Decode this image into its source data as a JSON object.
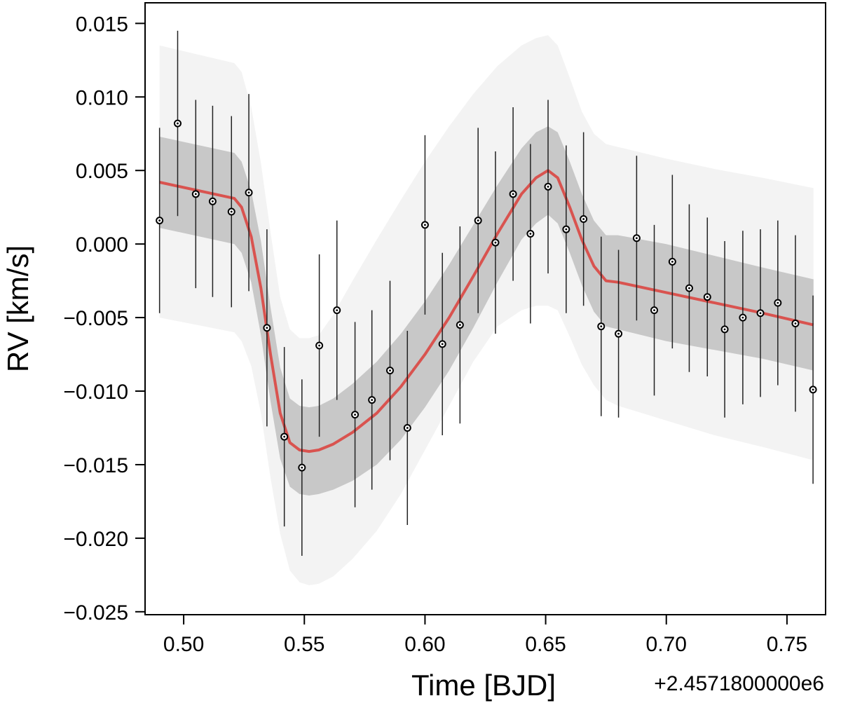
{
  "chart_data": {
    "type": "scatter",
    "xlabel": "Time [BJD]",
    "ylabel": "RV [km/s]",
    "x_offset_label": "+2.4571800000e6",
    "xlim": [
      0.484,
      0.766
    ],
    "ylim": [
      -0.0252,
      0.0164
    ],
    "x_ticks": [
      0.5,
      0.55,
      0.6,
      0.65,
      0.7,
      0.75
    ],
    "x_tick_labels": [
      "0.50",
      "0.55",
      "0.60",
      "0.65",
      "0.70",
      "0.75"
    ],
    "y_ticks": [
      0.015,
      0.01,
      0.005,
      0.0,
      -0.005,
      -0.01,
      -0.015,
      -0.02,
      -0.025
    ],
    "y_tick_labels": [
      "0.015",
      "0.010",
      "0.005",
      "0.000",
      "−0.005",
      "−0.010",
      "−0.015",
      "−0.020",
      "−0.025"
    ],
    "grid": false,
    "colors": {
      "model_line": "#d9534f",
      "inner_band": "#c8c8c8",
      "outer_band": "#f3f3f3",
      "points": "#000000"
    },
    "series": [
      {
        "type": "scatter_with_errorbars",
        "x": [
          0.49,
          0.4975,
          0.505,
          0.512,
          0.5198,
          0.527,
          0.5345,
          0.5417,
          0.549,
          0.5562,
          0.5635,
          0.571,
          0.578,
          0.5855,
          0.5927,
          0.6,
          0.6072,
          0.6145,
          0.622,
          0.6292,
          0.6365,
          0.6437,
          0.651,
          0.6585,
          0.6657,
          0.673,
          0.6802,
          0.6877,
          0.695,
          0.7025,
          0.7095,
          0.717,
          0.7242,
          0.7317,
          0.739,
          0.7462,
          0.7535,
          0.7608
        ],
        "y": [
          0.0016,
          0.0082,
          0.0034,
          0.0029,
          0.0022,
          0.0035,
          -0.0057,
          -0.0131,
          -0.0152,
          -0.0069,
          -0.0045,
          -0.0116,
          -0.0106,
          -0.0086,
          -0.0125,
          0.0013,
          -0.0068,
          -0.0055,
          0.0016,
          0.0001,
          0.0034,
          0.0007,
          0.0039,
          0.001,
          0.0017,
          -0.0056,
          -0.0061,
          0.0004,
          -0.0045,
          -0.0012,
          -0.003,
          -0.0036,
          -0.0058,
          -0.005,
          -0.0047,
          -0.004,
          -0.0054,
          -0.0099
        ],
        "yerr": [
          0.0063,
          0.0063,
          0.0064,
          0.0065,
          0.0065,
          0.0067,
          0.0067,
          0.0061,
          0.006,
          0.0062,
          0.0061,
          0.0063,
          0.0061,
          0.0061,
          0.0066,
          0.0061,
          0.0062,
          0.0067,
          0.0063,
          0.0062,
          0.0059,
          0.0061,
          0.0059,
          0.0057,
          0.0059,
          0.0061,
          0.0057,
          0.0056,
          0.0058,
          0.0059,
          0.0057,
          0.0054,
          0.006,
          0.0059,
          0.0057,
          0.0056,
          0.006,
          0.0064
        ]
      },
      {
        "type": "model_line",
        "x": [
          0.49,
          0.521,
          0.524,
          0.528,
          0.532,
          0.536,
          0.54,
          0.544,
          0.548,
          0.552,
          0.556,
          0.562,
          0.57,
          0.58,
          0.59,
          0.6,
          0.61,
          0.62,
          0.63,
          0.64,
          0.646,
          0.651,
          0.655,
          0.66,
          0.665,
          0.67,
          0.675,
          0.68,
          0.7,
          0.72,
          0.74,
          0.761
        ],
        "y": [
          0.0042,
          0.0031,
          0.0025,
          0.0005,
          -0.003,
          -0.0075,
          -0.0115,
          -0.0135,
          -0.014,
          -0.0141,
          -0.014,
          -0.0136,
          -0.0128,
          -0.0115,
          -0.0097,
          -0.0075,
          -0.005,
          -0.0022,
          0.0007,
          0.0034,
          0.0045,
          0.005,
          0.0045,
          0.0025,
          0.0003,
          -0.0015,
          -0.0025,
          -0.0026,
          -0.0033,
          -0.004,
          -0.0047,
          -0.0055
        ]
      },
      {
        "type": "band_inner",
        "x": [
          0.49,
          0.521,
          0.524,
          0.528,
          0.532,
          0.536,
          0.54,
          0.544,
          0.548,
          0.552,
          0.556,
          0.562,
          0.57,
          0.58,
          0.59,
          0.6,
          0.61,
          0.62,
          0.63,
          0.64,
          0.646,
          0.651,
          0.655,
          0.66,
          0.665,
          0.67,
          0.675,
          0.68,
          0.7,
          0.72,
          0.74,
          0.761
        ],
        "upper": [
          0.0073,
          0.0062,
          0.0056,
          0.0036,
          0.0002,
          -0.0043,
          -0.0084,
          -0.0105,
          -0.011,
          -0.0111,
          -0.011,
          -0.0105,
          -0.0095,
          -0.008,
          -0.0061,
          -0.0039,
          -0.0014,
          0.0013,
          0.004,
          0.0065,
          0.0076,
          0.008,
          0.0076,
          0.0056,
          0.0034,
          0.0016,
          0.0006,
          0.0006,
          0.0,
          -0.0008,
          -0.0016,
          -0.0024
        ],
        "lower": [
          0.0011,
          0.0,
          -0.0006,
          -0.0026,
          -0.0062,
          -0.0107,
          -0.0146,
          -0.0165,
          -0.017,
          -0.0171,
          -0.017,
          -0.0167,
          -0.0161,
          -0.015,
          -0.0133,
          -0.0111,
          -0.0086,
          -0.0057,
          -0.0026,
          0.0003,
          0.0014,
          0.002,
          0.0014,
          -0.0006,
          -0.0028,
          -0.0046,
          -0.0056,
          -0.0058,
          -0.0066,
          -0.0072,
          -0.0078,
          -0.0086
        ]
      },
      {
        "type": "band_outer",
        "x": [
          0.49,
          0.521,
          0.524,
          0.528,
          0.532,
          0.536,
          0.54,
          0.544,
          0.548,
          0.552,
          0.556,
          0.562,
          0.57,
          0.58,
          0.59,
          0.6,
          0.61,
          0.62,
          0.63,
          0.64,
          0.646,
          0.651,
          0.655,
          0.66,
          0.665,
          0.67,
          0.675,
          0.68,
          0.7,
          0.72,
          0.74,
          0.761
        ],
        "upper": [
          0.0135,
          0.0123,
          0.0117,
          0.0093,
          0.0055,
          0.0008,
          -0.0036,
          -0.0058,
          -0.0064,
          -0.0064,
          -0.0062,
          -0.0048,
          -0.0025,
          0.0003,
          0.003,
          0.0056,
          0.008,
          0.0102,
          0.0121,
          0.0135,
          0.014,
          0.0142,
          0.0135,
          0.0113,
          0.009,
          0.0075,
          0.0068,
          0.0066,
          0.0058,
          0.0051,
          0.0045,
          0.0038
        ],
        "lower": [
          -0.005,
          -0.006,
          -0.0066,
          -0.0083,
          -0.0115,
          -0.0159,
          -0.0197,
          -0.0222,
          -0.023,
          -0.0232,
          -0.0231,
          -0.0226,
          -0.0214,
          -0.0195,
          -0.017,
          -0.014,
          -0.011,
          -0.008,
          -0.0056,
          -0.0045,
          -0.0042,
          -0.0042,
          -0.0045,
          -0.0063,
          -0.0082,
          -0.0096,
          -0.0106,
          -0.011,
          -0.012,
          -0.013,
          -0.0138,
          -0.0147
        ]
      }
    ]
  }
}
